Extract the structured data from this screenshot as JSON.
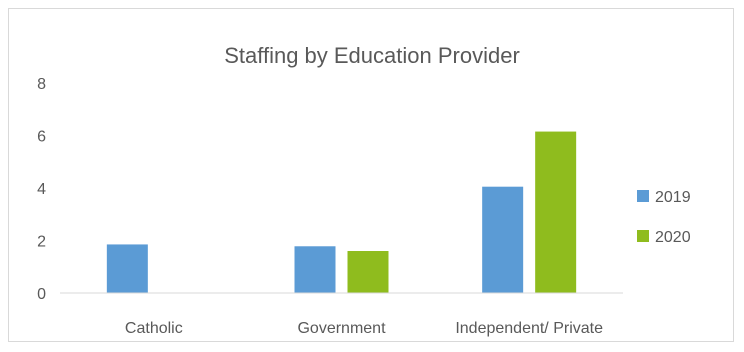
{
  "chart_data": {
    "type": "bar",
    "title": "Staffing by Education Provider",
    "categories": [
      "Catholic",
      "Government",
      "Independent/ Private"
    ],
    "series": [
      {
        "name": "2019",
        "values": [
          1.85,
          1.78,
          4.05
        ],
        "color": "#5b9bd5"
      },
      {
        "name": "2020",
        "values": [
          0,
          1.6,
          6.15
        ],
        "color": "#8fbc1e"
      }
    ],
    "y_ticks": [
      "0",
      "2",
      "4",
      "6",
      "8"
    ],
    "ylim": [
      0,
      8
    ],
    "grid": false,
    "legend_position": "right"
  }
}
